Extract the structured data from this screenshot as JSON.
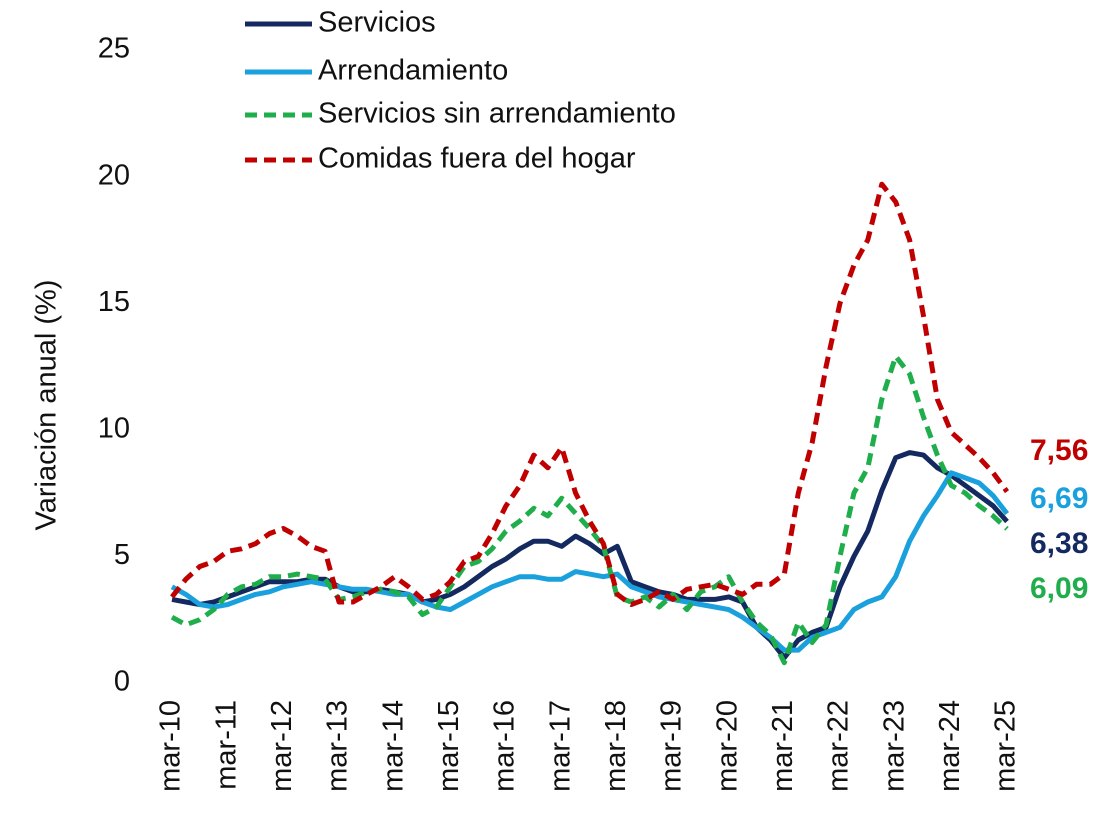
{
  "chart_data": {
    "type": "line",
    "y_label": "Variación anual (%)",
    "categories": [
      "mar-10",
      null,
      null,
      null,
      "mar-11",
      null,
      null,
      null,
      "mar-12",
      null,
      null,
      null,
      "mar-13",
      null,
      null,
      null,
      "mar-14",
      null,
      null,
      null,
      "mar-15",
      null,
      null,
      null,
      "mar-16",
      null,
      null,
      null,
      "mar-17",
      null,
      null,
      null,
      "mar-18",
      null,
      null,
      null,
      "mar-19",
      null,
      null,
      null,
      "mar-20",
      null,
      null,
      null,
      "mar-21",
      null,
      null,
      null,
      "mar-22",
      null,
      null,
      null,
      "mar-23",
      null,
      null,
      null,
      "mar-24",
      null,
      null,
      null,
      "mar-25"
    ],
    "series": [
      {
        "name": "Servicios",
        "color": "#13295f",
        "dash": false,
        "end_label": "6,38",
        "values": [
          3.3,
          3.2,
          3.1,
          3.2,
          3.4,
          3.6,
          3.8,
          4.0,
          4.0,
          4.0,
          4.1,
          4.1,
          3.8,
          3.6,
          3.6,
          3.7,
          3.6,
          3.5,
          3.2,
          3.3,
          3.5,
          3.8,
          4.2,
          4.6,
          4.9,
          5.3,
          5.6,
          5.6,
          5.4,
          5.8,
          5.5,
          5.1,
          5.4,
          4.0,
          3.8,
          3.6,
          3.5,
          3.3,
          3.3,
          3.3,
          3.4,
          3.2,
          2.2,
          1.7,
          1.0,
          1.7,
          2.0,
          2.2,
          3.8,
          5.0,
          6.0,
          7.6,
          8.9,
          9.1,
          9.0,
          8.5,
          8.2,
          7.8,
          7.4,
          7.0,
          6.38
        ]
      },
      {
        "name": "Arrendamiento",
        "color": "#1aa0dc",
        "dash": false,
        "end_label": "6,69",
        "values": [
          3.8,
          3.5,
          3.1,
          3.0,
          3.1,
          3.3,
          3.5,
          3.6,
          3.8,
          3.9,
          4.0,
          3.9,
          3.8,
          3.7,
          3.7,
          3.6,
          3.5,
          3.5,
          3.2,
          3.0,
          2.9,
          3.2,
          3.5,
          3.8,
          4.0,
          4.2,
          4.2,
          4.1,
          4.1,
          4.4,
          4.3,
          4.2,
          4.3,
          3.8,
          3.6,
          3.4,
          3.3,
          3.2,
          3.1,
          3.0,
          2.9,
          2.6,
          2.2,
          1.8,
          1.3,
          1.3,
          1.8,
          2.0,
          2.2,
          2.9,
          3.2,
          3.4,
          4.2,
          5.6,
          6.6,
          7.4,
          8.3,
          8.1,
          7.9,
          7.4,
          6.69
        ]
      },
      {
        "name": "Servicios sin arrendamiento",
        "color": "#1fae4b",
        "dash": true,
        "end_label": "6,09",
        "values": [
          2.6,
          2.3,
          2.5,
          2.9,
          3.5,
          3.8,
          3.9,
          4.2,
          4.2,
          4.3,
          4.2,
          4.1,
          3.3,
          3.4,
          3.6,
          3.7,
          3.6,
          3.4,
          2.7,
          3.0,
          3.8,
          4.6,
          4.8,
          5.3,
          6.0,
          6.4,
          6.9,
          6.6,
          7.3,
          6.7,
          6.1,
          5.4,
          3.4,
          3.2,
          3.4,
          3.0,
          3.5,
          2.9,
          3.6,
          3.8,
          4.2,
          3.2,
          2.4,
          1.9,
          0.8,
          2.4,
          1.6,
          2.3,
          5.0,
          7.5,
          8.5,
          11.2,
          12.9,
          12.2,
          10.5,
          9.0,
          7.8,
          7.5,
          7.0,
          6.6,
          6.09
        ]
      },
      {
        "name": "Comidas fuera del hogar",
        "color": "#c00000",
        "dash": true,
        "end_label": "7,56",
        "values": [
          3.4,
          4.1,
          4.6,
          4.8,
          5.2,
          5.3,
          5.5,
          5.9,
          6.1,
          5.8,
          5.4,
          5.2,
          3.2,
          3.2,
          3.5,
          3.8,
          4.2,
          3.8,
          3.3,
          3.5,
          4.0,
          4.8,
          5.0,
          5.9,
          7.0,
          7.8,
          9.0,
          8.5,
          9.3,
          7.5,
          6.4,
          5.5,
          3.5,
          3.1,
          3.3,
          3.6,
          3.3,
          3.7,
          3.8,
          3.9,
          3.7,
          3.5,
          3.9,
          3.9,
          4.3,
          7.5,
          9.5,
          12.5,
          15.0,
          16.5,
          17.5,
          19.7,
          19.0,
          17.5,
          14.5,
          11.2,
          9.9,
          9.4,
          8.9,
          8.3,
          7.56
        ]
      }
    ],
    "ylim": [
      0,
      25
    ],
    "yticks": [
      0,
      5,
      10,
      15,
      20,
      25
    ],
    "grid": false
  }
}
